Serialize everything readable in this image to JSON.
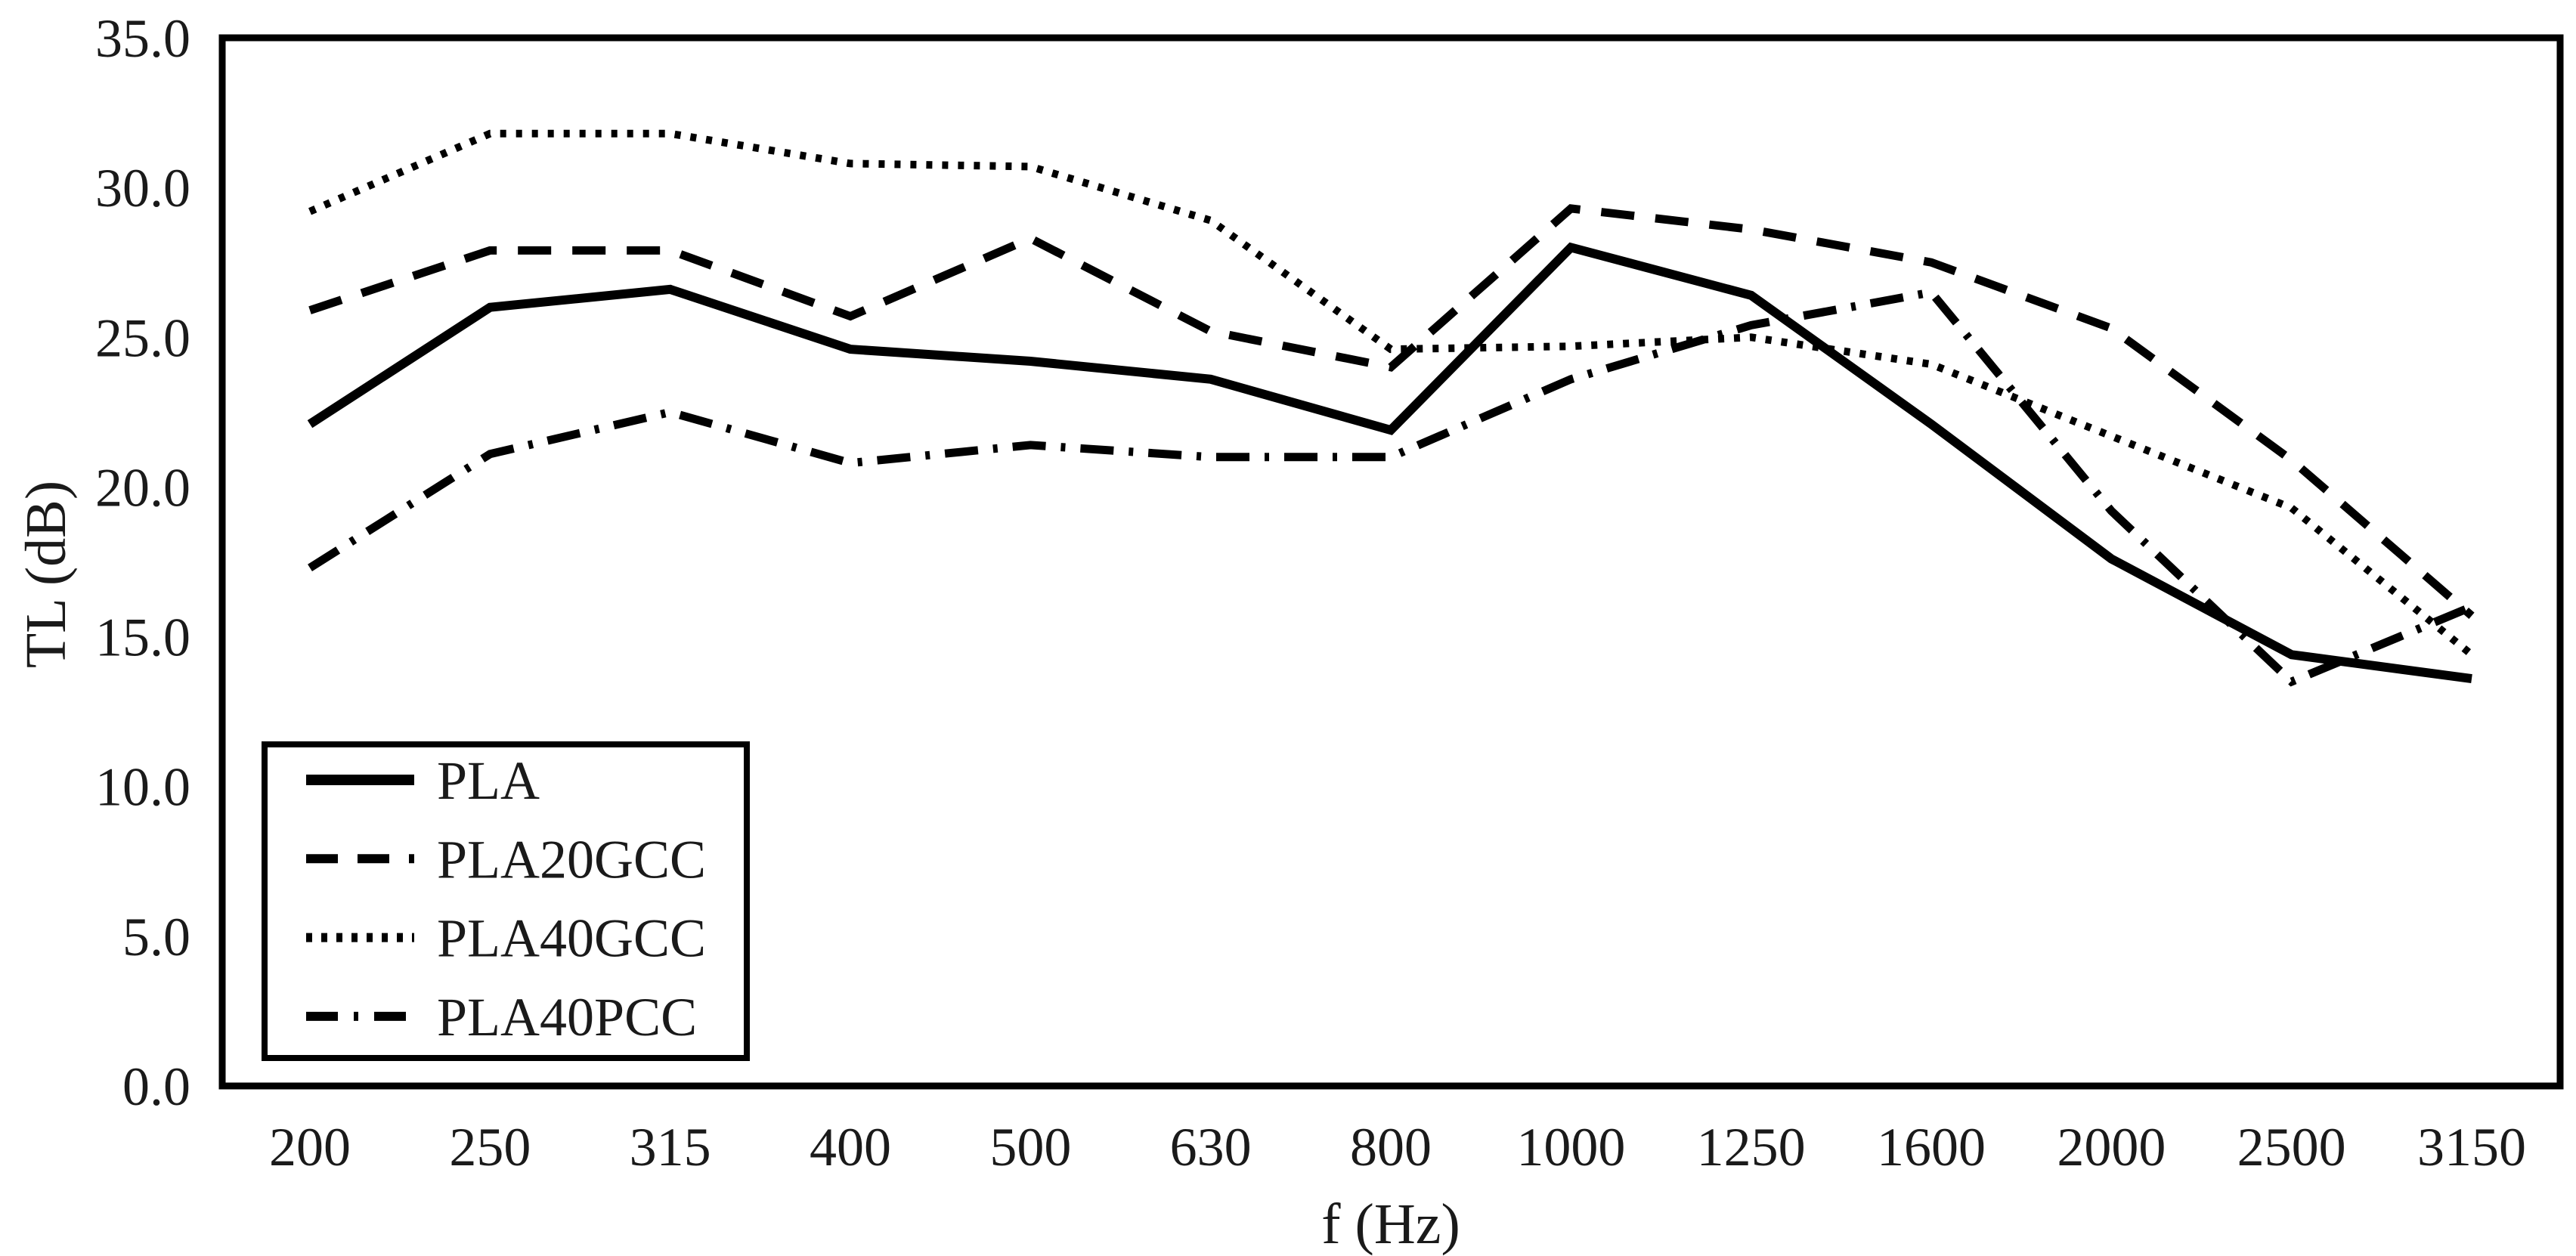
{
  "chart_data": {
    "type": "line",
    "title": "",
    "xlabel": "f (Hz)",
    "ylabel": "TL (dB)",
    "categories": [
      200,
      250,
      315,
      400,
      500,
      630,
      800,
      1000,
      1250,
      1600,
      2000,
      2500,
      3150
    ],
    "series": [
      {
        "name": "PLA",
        "line_style": "solid",
        "color": "#000000",
        "values": [
          22.1,
          26.0,
          26.6,
          24.6,
          24.2,
          23.6,
          21.9,
          28.0,
          26.4,
          22.1,
          17.6,
          14.4,
          13.6
        ]
      },
      {
        "name": "PLA20GCC",
        "line_style": "dashed",
        "color": "#000000",
        "values": [
          25.9,
          27.9,
          27.9,
          25.7,
          28.3,
          25.2,
          24.0,
          29.3,
          28.6,
          27.5,
          25.3,
          20.9,
          15.7
        ]
      },
      {
        "name": "PLA40GCC",
        "line_style": "dotted",
        "color": "#000000",
        "values": [
          29.2,
          31.8,
          31.8,
          30.8,
          30.7,
          28.9,
          24.6,
          24.7,
          25.0,
          24.1,
          21.7,
          19.3,
          14.4
        ]
      },
      {
        "name": "PLA40PCC",
        "line_style": "dash-dot",
        "color": "#000000",
        "values": [
          17.3,
          21.1,
          22.5,
          20.8,
          21.4,
          21.0,
          21.0,
          23.6,
          25.4,
          26.5,
          19.2,
          13.5,
          16.0
        ]
      }
    ],
    "ylim": [
      0.0,
      35.0
    ],
    "y_tick_step": 5.0,
    "y_tick_labels": [
      "0.0",
      "5.0",
      "10.0",
      "15.0",
      "20.0",
      "25.0",
      "30.0",
      "35.0"
    ],
    "grid": false,
    "legend_position": "lower-left",
    "plot_border": true,
    "background_color": "#ffffff",
    "line_color": "#000000"
  }
}
